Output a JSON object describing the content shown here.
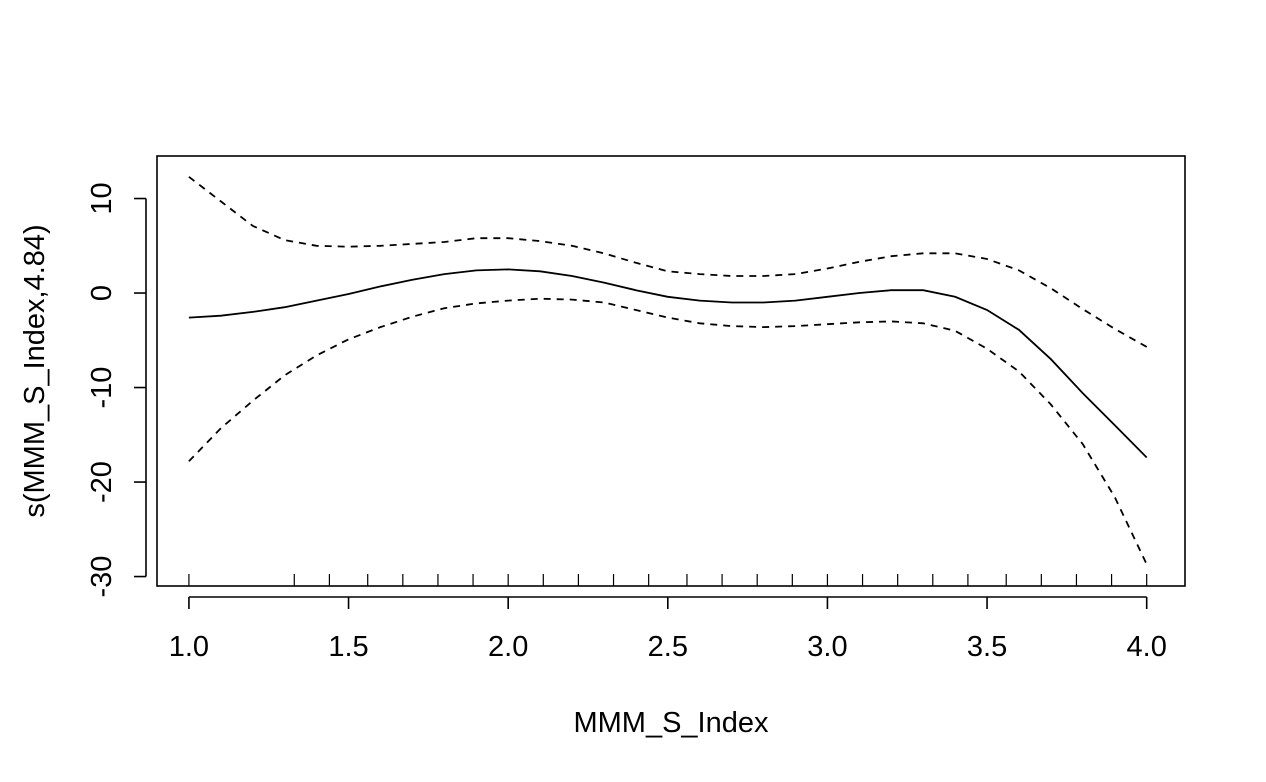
{
  "chart_data": {
    "type": "line",
    "title": "",
    "xlabel": "MMM_S_Index",
    "ylabel": "s(MMM_S_Index,4.84)",
    "xlim": [
      0.9,
      4.12
    ],
    "ylim": [
      -31,
      14.5
    ],
    "xticks": [
      1.0,
      1.5,
      2.0,
      2.5,
      3.0,
      3.5,
      4.0
    ],
    "xtick_labels": [
      "1.0",
      "1.5",
      "2.0",
      "2.5",
      "3.0",
      "3.5",
      "4.0"
    ],
    "yticks": [
      -30,
      -20,
      -10,
      0,
      10
    ],
    "ytick_labels": [
      "-30",
      "-20",
      "-10",
      "0",
      "10"
    ],
    "grid": false,
    "rug": [
      1.0,
      1.33,
      1.44,
      1.56,
      1.67,
      1.78,
      1.89,
      2.0,
      2.11,
      2.22,
      2.33,
      2.44,
      2.56,
      2.67,
      2.78,
      2.89,
      3.0,
      3.11,
      3.22,
      3.33,
      3.44,
      3.56,
      3.67,
      3.78,
      3.89,
      4.0
    ],
    "x": [
      1.0,
      1.1,
      1.2,
      1.3,
      1.4,
      1.5,
      1.6,
      1.7,
      1.8,
      1.9,
      2.0,
      2.1,
      2.2,
      2.3,
      2.4,
      2.5,
      2.6,
      2.7,
      2.8,
      2.9,
      3.0,
      3.1,
      3.2,
      3.3,
      3.4,
      3.5,
      3.6,
      3.7,
      3.8,
      3.9,
      4.0
    ],
    "series": [
      {
        "values": [
          -2.6,
          -2.4,
          -2.0,
          -1.5,
          -0.8,
          -0.1,
          0.7,
          1.4,
          2.0,
          2.4,
          2.5,
          2.3,
          1.8,
          1.1,
          0.3,
          -0.4,
          -0.8,
          -1.0,
          -1.0,
          -0.8,
          -0.4,
          0.0,
          0.3,
          0.3,
          -0.4,
          -1.8,
          -3.9,
          -7.0,
          -10.6,
          -14.0,
          -17.4
        ]
      },
      {
        "values": [
          12.3,
          9.7,
          7.1,
          5.6,
          5.0,
          4.9,
          5.0,
          5.2,
          5.4,
          5.8,
          5.8,
          5.5,
          5.0,
          4.2,
          3.2,
          2.3,
          2.0,
          1.8,
          1.8,
          2.0,
          2.6,
          3.3,
          3.9,
          4.2,
          4.2,
          3.6,
          2.4,
          0.5,
          -1.7,
          -3.8,
          -5.7
        ]
      },
      {
        "values": [
          -17.8,
          -14.3,
          -11.4,
          -8.7,
          -6.6,
          -4.9,
          -3.6,
          -2.5,
          -1.6,
          -1.1,
          -0.8,
          -0.6,
          -0.7,
          -1.0,
          -1.8,
          -2.6,
          -3.2,
          -3.5,
          -3.6,
          -3.5,
          -3.3,
          -3.1,
          -3.0,
          -3.2,
          -4.0,
          -5.9,
          -8.3,
          -11.8,
          -16.0,
          -21.6,
          -28.7
        ]
      }
    ]
  }
}
